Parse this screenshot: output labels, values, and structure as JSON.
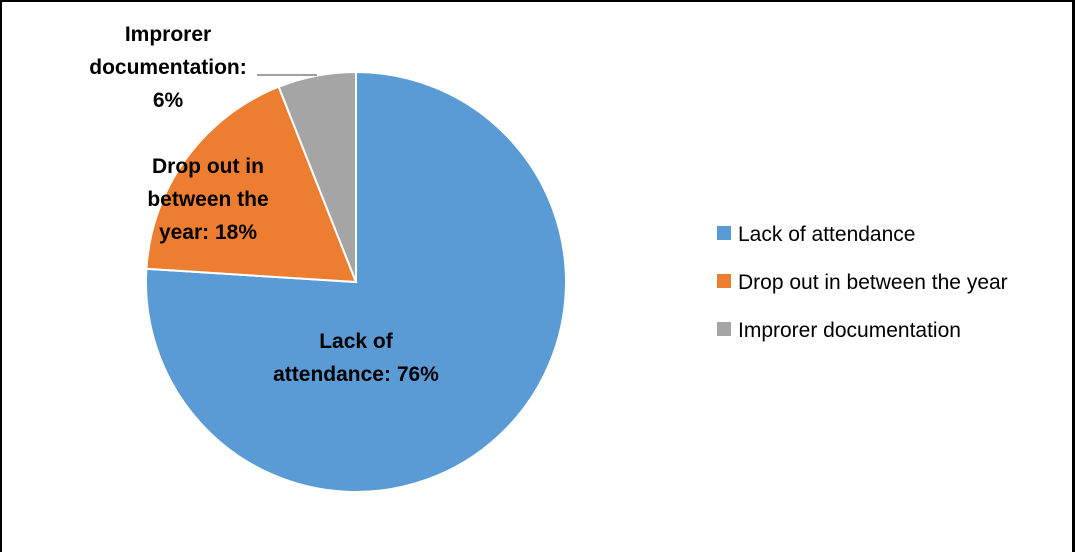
{
  "chart_data": {
    "type": "pie",
    "title": "",
    "slices": [
      {
        "name": "Lack of attendance",
        "value": 76,
        "color": "#5B9BD5",
        "label_lines": [
          "Lack of",
          "attendance: 76%"
        ]
      },
      {
        "name": "Drop out in between the year",
        "value": 18,
        "color": "#ED7D31",
        "label_lines": [
          "Drop out in",
          "between the",
          "year: 18%"
        ]
      },
      {
        "name": "Improrer documentation",
        "value": 6,
        "color": "#A5A5A5",
        "label_lines": [
          "Improrer",
          "documentation:",
          "6%"
        ]
      }
    ],
    "legend": {
      "position": "right",
      "items": [
        "Lack of attendance",
        "Drop out in between the year",
        "Improrer documentation"
      ]
    },
    "data_labels": true,
    "leader_line": true
  }
}
